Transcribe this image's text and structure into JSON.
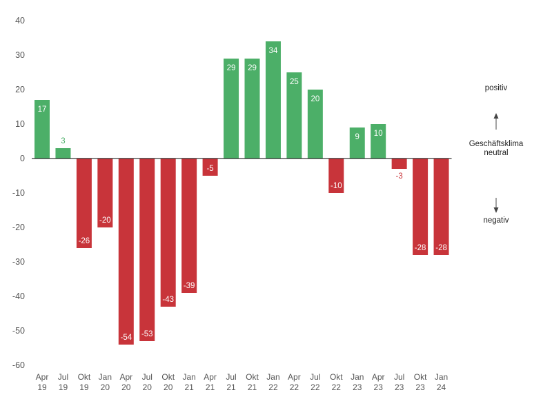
{
  "chart_data": {
    "type": "bar",
    "categories": [
      [
        "Apr",
        "19"
      ],
      [
        "Jul",
        "19"
      ],
      [
        "Okt",
        "19"
      ],
      [
        "Jan",
        "20"
      ],
      [
        "Apr",
        "20"
      ],
      [
        "Jul",
        "20"
      ],
      [
        "Okt",
        "20"
      ],
      [
        "Jan",
        "21"
      ],
      [
        "Apr",
        "21"
      ],
      [
        "Jul",
        "21"
      ],
      [
        "Okt",
        "21"
      ],
      [
        "Jan",
        "22"
      ],
      [
        "Apr",
        "22"
      ],
      [
        "Jul",
        "22"
      ],
      [
        "Okt",
        "22"
      ],
      [
        "Jan",
        "23"
      ],
      [
        "Apr",
        "23"
      ],
      [
        "Jul",
        "23"
      ],
      [
        "Okt",
        "23"
      ],
      [
        "Jan",
        "24"
      ]
    ],
    "values": [
      17,
      3,
      -26,
      -20,
      -54,
      -53,
      -43,
      -39,
      -5,
      29,
      29,
      34,
      25,
      20,
      -10,
      9,
      10,
      -3,
      -28,
      -28
    ],
    "ylim": [
      -60,
      40
    ],
    "yticks": [
      40,
      30,
      20,
      10,
      0,
      -10,
      -20,
      -30,
      -40,
      -50,
      -60
    ],
    "grid": false,
    "colors": {
      "positive": "#4caf68",
      "negative": "#c8343a",
      "axis": "#000000"
    }
  },
  "legend": {
    "positive": "positiv",
    "center_line1": "Geschäftsklima",
    "center_line2": "neutral",
    "negative": "negativ"
  }
}
